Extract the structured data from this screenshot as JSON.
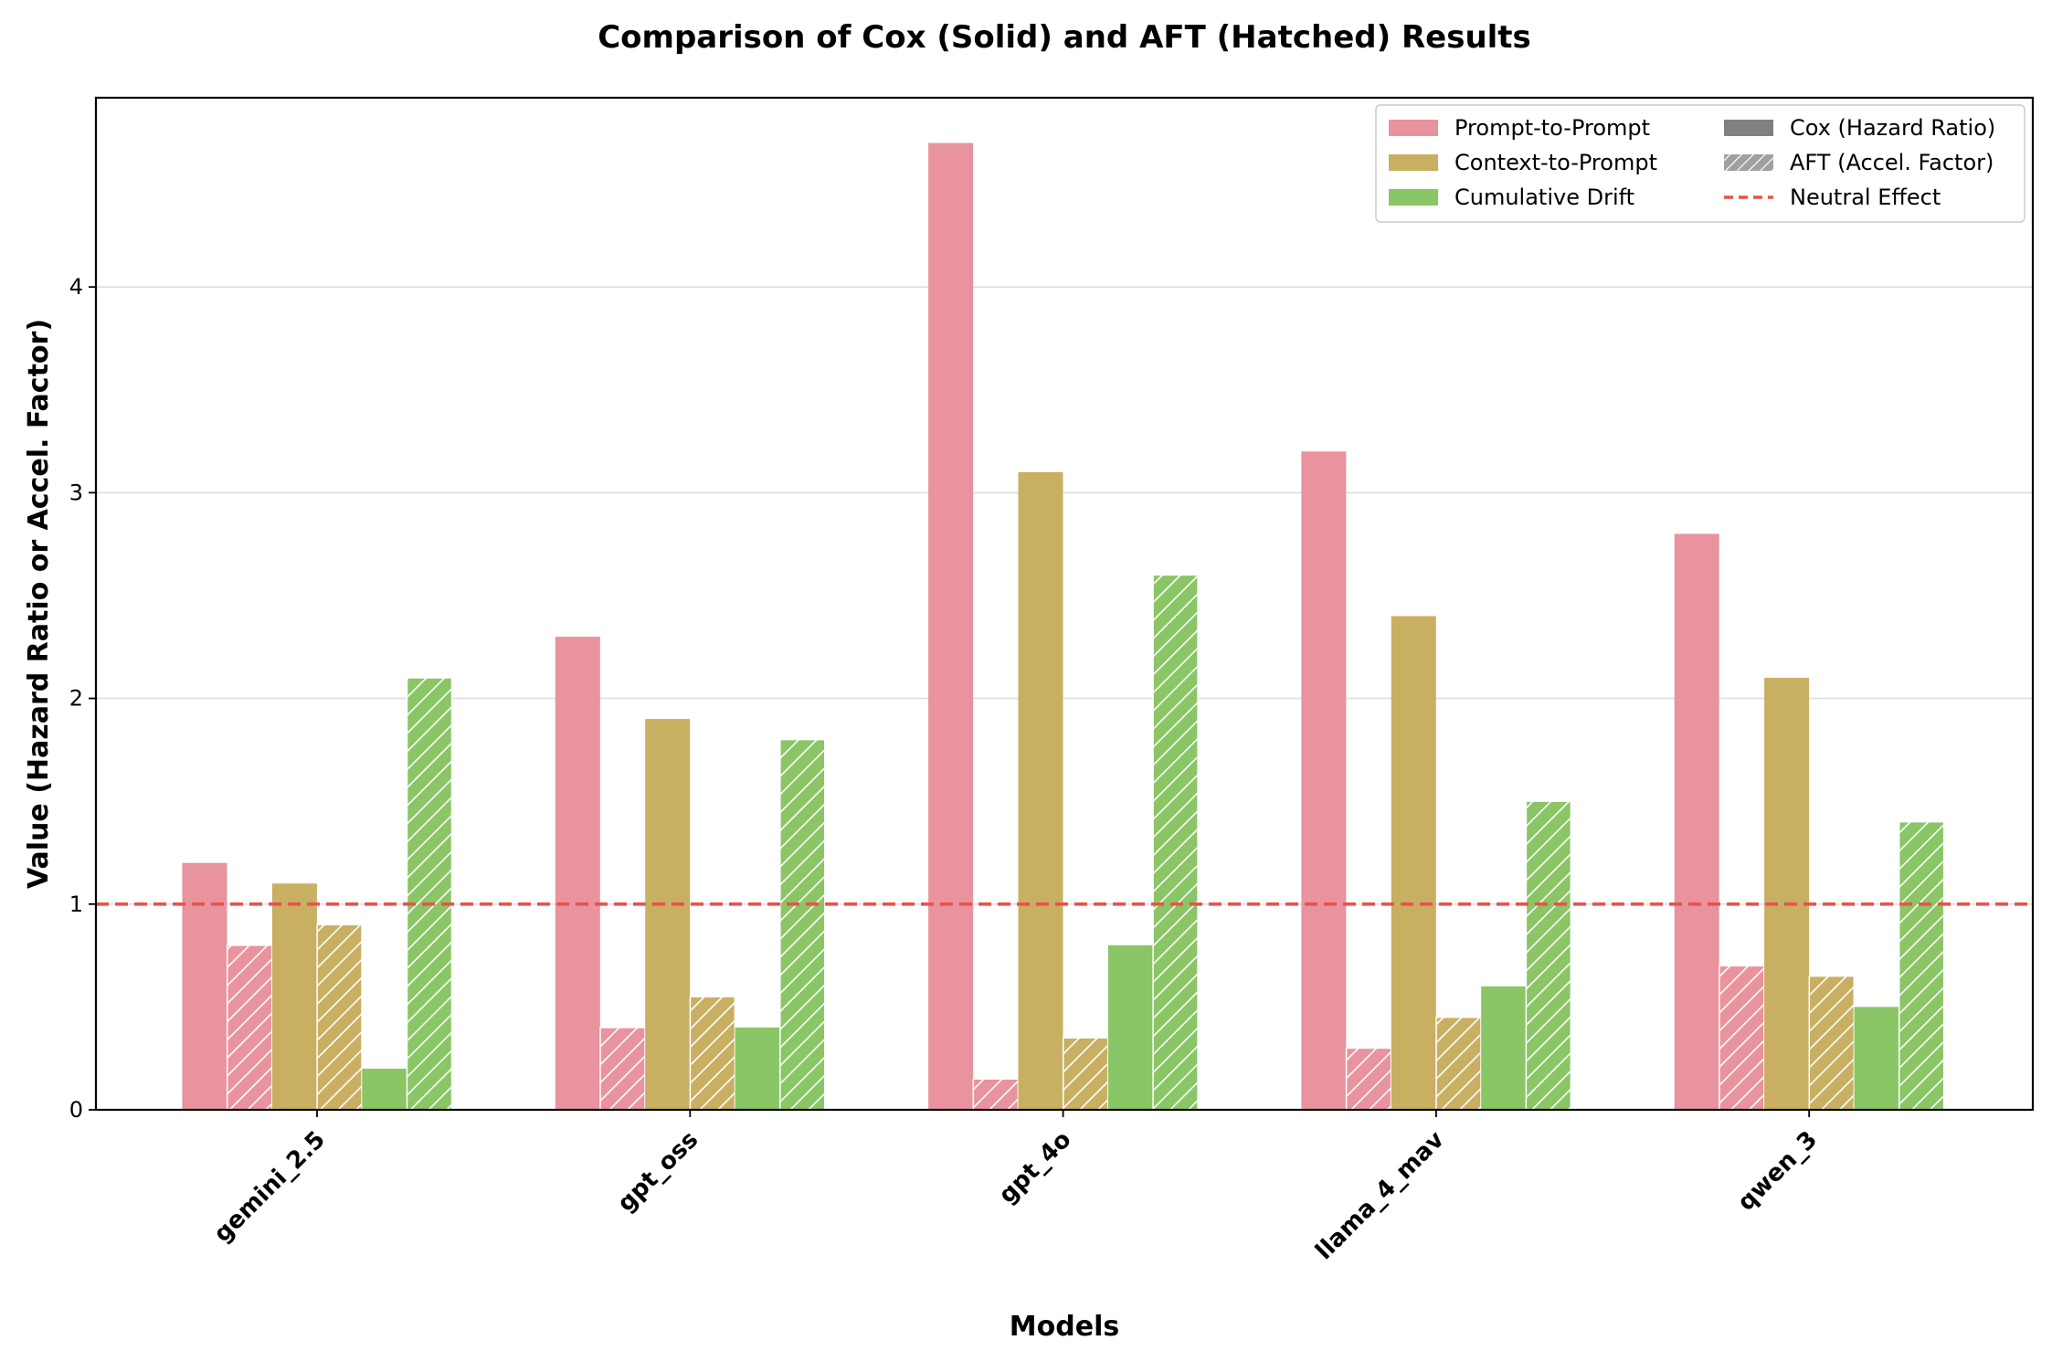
{
  "chart_data": {
    "type": "bar",
    "title": "Comparison of Cox (Solid) and AFT (Hatched) Results",
    "xlabel": "Models",
    "ylabel": "Value (Hazard Ratio or Accel. Factor)",
    "ylim": [
      0,
      4.92
    ],
    "yticks": [
      "0",
      "1",
      "2",
      "3",
      "4"
    ],
    "ytick_values": [
      0,
      1,
      2,
      3,
      4
    ],
    "grid": "horizontal",
    "categories": [
      "gemini_2.5",
      "gpt_oss",
      "gpt_4o",
      "llama_4_mav",
      "qwen_3"
    ],
    "series": [
      {
        "name": "Prompt-to-Prompt",
        "model": "Cox",
        "color": "#E8939D",
        "hatched": false,
        "values": [
          1.2,
          2.3,
          4.7,
          3.2,
          2.8
        ]
      },
      {
        "name": "Prompt-to-Prompt",
        "model": "AFT",
        "color": "#E8939D",
        "hatched": true,
        "values": [
          0.8,
          0.4,
          0.15,
          0.3,
          0.7
        ]
      },
      {
        "name": "Context-to-Prompt",
        "model": "Cox",
        "color": "#C8AF62",
        "hatched": false,
        "values": [
          1.1,
          1.9,
          3.1,
          2.4,
          2.1
        ]
      },
      {
        "name": "Context-to-Prompt",
        "model": "AFT",
        "color": "#C8AF62",
        "hatched": true,
        "values": [
          0.9,
          0.55,
          0.35,
          0.45,
          0.65
        ]
      },
      {
        "name": "Cumulative Drift",
        "model": "Cox",
        "color": "#8AC566",
        "hatched": false,
        "values": [
          0.2,
          0.4,
          0.8,
          0.6,
          0.5
        ]
      },
      {
        "name": "Cumulative Drift",
        "model": "AFT",
        "color": "#8AC566",
        "hatched": true,
        "values": [
          2.1,
          1.8,
          2.6,
          1.5,
          1.4
        ]
      }
    ],
    "reference_line": {
      "label": "Neutral Effect",
      "value": 1,
      "color": "#E8534A",
      "style": "dashed"
    },
    "legend": {
      "placement": "top-right",
      "entries": [
        {
          "label": "Prompt-to-Prompt",
          "kind": "patch",
          "color": "#E8939D"
        },
        {
          "label": "Cox (Hazard Ratio)",
          "kind": "patch",
          "color": "#808080"
        },
        {
          "label": "Context-to-Prompt",
          "kind": "patch",
          "color": "#C8AF62"
        },
        {
          "label": "AFT (Accel. Factor)",
          "kind": "hatched-patch",
          "color": "#A0A0A0"
        },
        {
          "label": "Cumulative Drift",
          "kind": "patch",
          "color": "#8AC566"
        },
        {
          "label": "Neutral Effect",
          "kind": "dashed-line",
          "color": "#E8534A"
        }
      ]
    }
  }
}
